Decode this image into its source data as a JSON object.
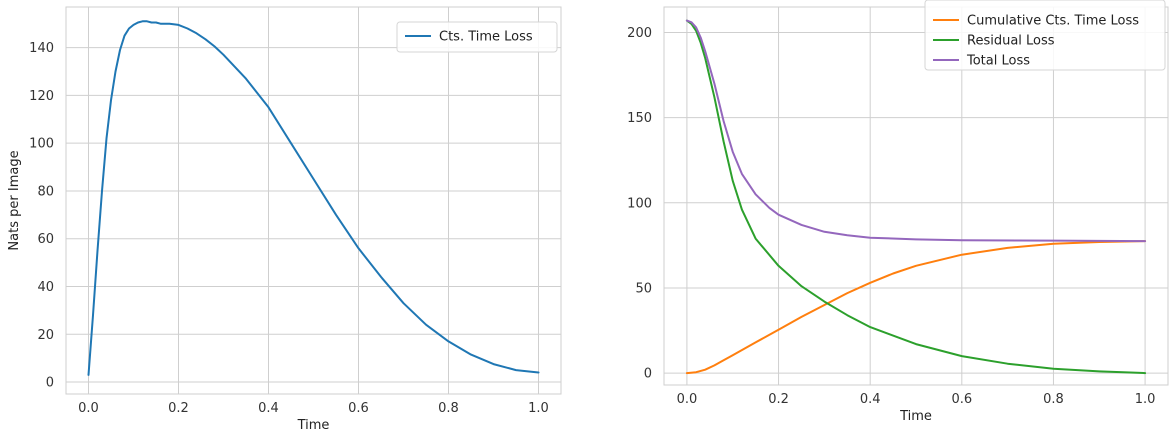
{
  "chart_data": [
    {
      "type": "line",
      "xlabel": "Time",
      "ylabel": "Nats per Image",
      "xlim": [
        -0.05,
        1.05
      ],
      "ylim": [
        -5,
        157
      ],
      "xticks": [
        0.0,
        0.2,
        0.4,
        0.6,
        0.8,
        1.0
      ],
      "xtick_labels": [
        "0.0",
        "0.2",
        "0.4",
        "0.6",
        "0.8",
        "1.0"
      ],
      "yticks": [
        0,
        20,
        40,
        60,
        80,
        100,
        120,
        140
      ],
      "ytick_labels": [
        "0",
        "20",
        "40",
        "60",
        "80",
        "100",
        "120",
        "140"
      ],
      "grid": true,
      "legend_position": "top-right",
      "series": [
        {
          "name": "Cts. Time Loss",
          "color": "#1f77b4",
          "x": [
            0.0,
            0.01,
            0.02,
            0.03,
            0.04,
            0.05,
            0.06,
            0.07,
            0.08,
            0.09,
            0.1,
            0.11,
            0.12,
            0.13,
            0.14,
            0.15,
            0.16,
            0.18,
            0.2,
            0.22,
            0.24,
            0.26,
            0.28,
            0.3,
            0.35,
            0.4,
            0.45,
            0.5,
            0.55,
            0.6,
            0.65,
            0.7,
            0.75,
            0.8,
            0.85,
            0.9,
            0.95,
            1.0
          ],
          "y": [
            3,
            28,
            55,
            80,
            102,
            118,
            130,
            139,
            145,
            148,
            149.5,
            150.5,
            151,
            151,
            150.5,
            150.5,
            150,
            150,
            149.5,
            148,
            146,
            143.5,
            140.5,
            137,
            127,
            115,
            100,
            85,
            70,
            56,
            44,
            33,
            24,
            17,
            11.5,
            7.5,
            5,
            4
          ]
        }
      ]
    },
    {
      "type": "line",
      "xlabel": "Time",
      "ylabel": "",
      "xlim": [
        -0.05,
        1.05
      ],
      "ylim": [
        -7,
        215
      ],
      "xticks": [
        0.0,
        0.2,
        0.4,
        0.6,
        0.8,
        1.0
      ],
      "xtick_labels": [
        "0.0",
        "0.2",
        "0.4",
        "0.6",
        "0.8",
        "1.0"
      ],
      "yticks": [
        0,
        50,
        100,
        150,
        200
      ],
      "ytick_labels": [
        "0",
        "50",
        "100",
        "150",
        "200"
      ],
      "grid": true,
      "legend_position": "top-right",
      "series": [
        {
          "name": "Cumulative Cts. Time Loss",
          "color": "#ff7f0e",
          "x": [
            0.0,
            0.02,
            0.04,
            0.06,
            0.08,
            0.1,
            0.15,
            0.2,
            0.25,
            0.3,
            0.35,
            0.4,
            0.45,
            0.5,
            0.6,
            0.7,
            0.8,
            0.9,
            1.0
          ],
          "y": [
            0,
            0.5,
            2,
            4.5,
            7.5,
            10.5,
            18,
            25.5,
            33,
            40,
            47,
            53,
            58.5,
            63,
            69.5,
            73.5,
            76,
            77,
            77.5
          ]
        },
        {
          "name": "Residual Loss",
          "color": "#2ca02c",
          "x": [
            0.0,
            0.01,
            0.02,
            0.03,
            0.04,
            0.06,
            0.08,
            0.1,
            0.12,
            0.15,
            0.2,
            0.25,
            0.3,
            0.35,
            0.4,
            0.5,
            0.6,
            0.7,
            0.8,
            0.9,
            1.0
          ],
          "y": [
            207,
            205,
            201,
            194,
            185,
            162,
            136,
            113,
            96,
            79,
            63,
            51,
            42,
            34,
            27,
            17,
            10,
            5.5,
            2.5,
            1,
            0
          ]
        },
        {
          "name": "Total Loss",
          "color": "#9467bd",
          "x": [
            0.0,
            0.01,
            0.02,
            0.03,
            0.04,
            0.06,
            0.08,
            0.1,
            0.12,
            0.15,
            0.18,
            0.2,
            0.25,
            0.3,
            0.35,
            0.4,
            0.5,
            0.6,
            0.8,
            1.0
          ],
          "y": [
            207,
            206,
            203,
            197,
            189,
            170,
            148,
            130,
            117,
            105,
            97,
            93,
            87,
            83,
            81,
            79.5,
            78.5,
            78,
            77.8,
            77.5
          ]
        }
      ]
    }
  ]
}
